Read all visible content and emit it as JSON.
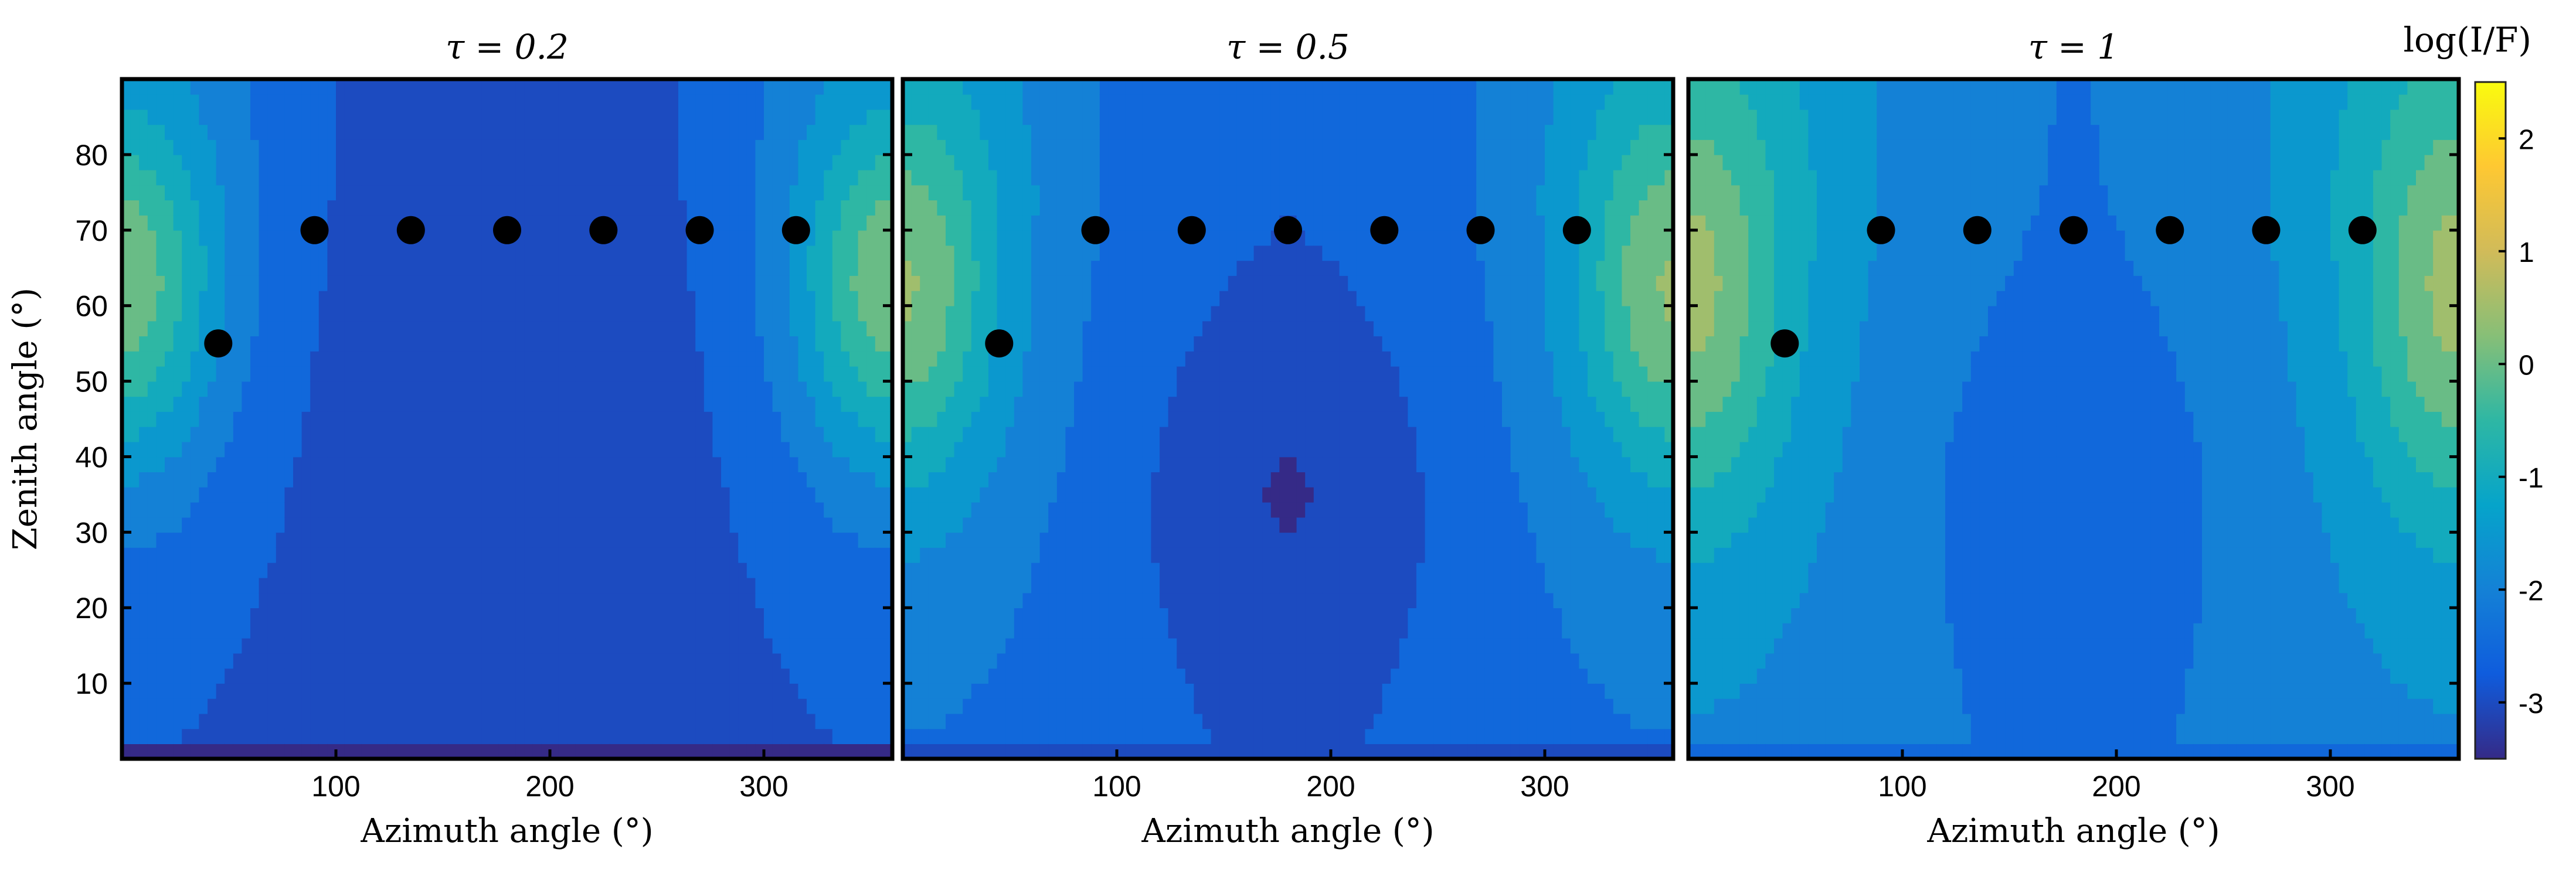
{
  "chart_data": [
    {
      "type": "heatmap",
      "title": "τ = 0.2",
      "xlabel": "Azimuth angle (°)",
      "ylabel": "Zenith angle (°)",
      "xlim": [
        0,
        360
      ],
      "ylim": [
        0,
        90
      ],
      "xticks": [
        100,
        200,
        300
      ],
      "yticks": [
        10,
        20,
        30,
        40,
        50,
        60,
        70,
        80
      ],
      "field": {
        "base": -3.2,
        "peak": 2.2,
        "peak_zenith": 62,
        "peak_width": 22,
        "bowl": 0.0
      },
      "points": [
        [
          45,
          55
        ],
        [
          90,
          70
        ],
        [
          135,
          70
        ],
        [
          180,
          70
        ],
        [
          225,
          70
        ],
        [
          270,
          70
        ],
        [
          315,
          70
        ]
      ]
    },
    {
      "type": "heatmap",
      "title": "τ = 0.5",
      "xlabel": "Azimuth angle (°)",
      "ylabel": "",
      "xlim": [
        0,
        360
      ],
      "ylim": [
        0,
        90
      ],
      "xticks": [
        100,
        200,
        300
      ],
      "yticks": [],
      "field": {
        "base": -2.75,
        "peak": 1.9,
        "peak_zenith": 61,
        "peak_width": 24,
        "bowl": 0.55
      },
      "points": [
        [
          45,
          55
        ],
        [
          90,
          70
        ],
        [
          135,
          70
        ],
        [
          180,
          70
        ],
        [
          225,
          70
        ],
        [
          270,
          70
        ],
        [
          315,
          70
        ]
      ]
    },
    {
      "type": "heatmap",
      "title": "τ = 1",
      "xlabel": "Azimuth angle (°)",
      "ylabel": "",
      "xlim": [
        0,
        360
      ],
      "ylim": [
        0,
        90
      ],
      "xticks": [
        100,
        200,
        300
      ],
      "yticks": [],
      "field": {
        "base": -2.3,
        "peak": 1.6,
        "peak_zenith": 60,
        "peak_width": 26,
        "bowl": 0.35
      },
      "points": [
        [
          45,
          55
        ],
        [
          90,
          70
        ],
        [
          135,
          70
        ],
        [
          180,
          70
        ],
        [
          225,
          70
        ],
        [
          270,
          70
        ],
        [
          315,
          70
        ]
      ]
    }
  ],
  "colorbar": {
    "label": "log(I/F)",
    "range": [
      -3.5,
      2.5
    ],
    "ticks": [
      "2",
      "1",
      "0",
      "-1",
      "-2",
      "-3"
    ],
    "tick_values": [
      2,
      1,
      0,
      -1,
      -2,
      -3
    ],
    "colors": [
      "#352a87",
      "#0f5cdd",
      "#1481d6",
      "#06a4ca",
      "#2eb7a4",
      "#87bf77",
      "#d1bb59",
      "#fec832",
      "#f9fb0e"
    ]
  }
}
